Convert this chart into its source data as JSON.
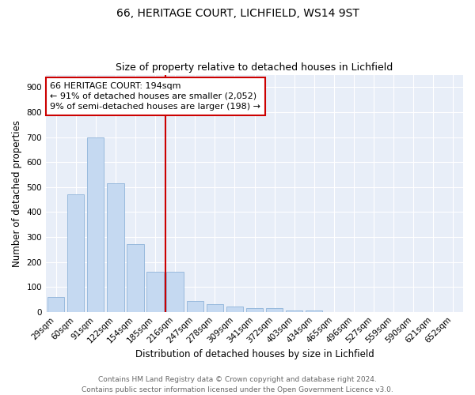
{
  "title1": "66, HERITAGE COURT, LICHFIELD, WS14 9ST",
  "title2": "Size of property relative to detached houses in Lichfield",
  "xlabel": "Distribution of detached houses by size in Lichfield",
  "ylabel": "Number of detached properties",
  "categories": [
    "29sqm",
    "60sqm",
    "91sqm",
    "122sqm",
    "154sqm",
    "185sqm",
    "216sqm",
    "247sqm",
    "278sqm",
    "309sqm",
    "341sqm",
    "372sqm",
    "403sqm",
    "434sqm",
    "465sqm",
    "496sqm",
    "527sqm",
    "559sqm",
    "590sqm",
    "621sqm",
    "652sqm"
  ],
  "values": [
    60,
    470,
    700,
    515,
    270,
    160,
    160,
    45,
    30,
    20,
    15,
    15,
    5,
    5,
    0,
    0,
    0,
    0,
    0,
    0,
    0
  ],
  "bar_color": "#c5d9f1",
  "bar_edge_color": "#8fb4d9",
  "vline_color": "#cc0000",
  "annotation_text": "66 HERITAGE COURT: 194sqm\n← 91% of detached houses are smaller (2,052)\n9% of semi-detached houses are larger (198) →",
  "annotation_box_facecolor": "#ffffff",
  "annotation_box_edgecolor": "#cc0000",
  "ylim": [
    0,
    950
  ],
  "yticks": [
    0,
    100,
    200,
    300,
    400,
    500,
    600,
    700,
    800,
    900
  ],
  "bg_color": "#e8eef8",
  "footnote": "Contains HM Land Registry data © Crown copyright and database right 2024.\nContains public sector information licensed under the Open Government Licence v3.0.",
  "title1_fontsize": 10,
  "title2_fontsize": 9,
  "xlabel_fontsize": 8.5,
  "ylabel_fontsize": 8.5,
  "tick_fontsize": 7.5,
  "annot_fontsize": 8,
  "footnote_fontsize": 6.5
}
